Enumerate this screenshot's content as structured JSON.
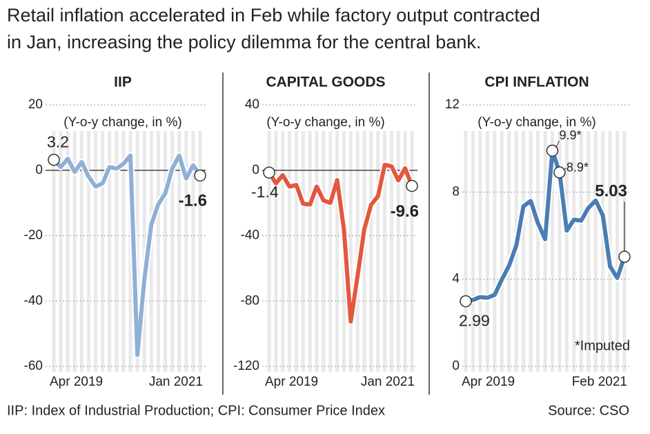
{
  "title": [
    "Retail inflation accelerated in Feb while factory output contracted",
    "in Jan, increasing the policy dilemma for the central bank."
  ],
  "chart_data": [
    {
      "type": "line",
      "title": "IIP",
      "subtitle": "(Y-o-y change, in %)",
      "categories": [
        "Apr 2019",
        null,
        null,
        null,
        null,
        null,
        null,
        null,
        null,
        null,
        null,
        null,
        null,
        null,
        null,
        null,
        null,
        null,
        null,
        null,
        null,
        "Jan 2021"
      ],
      "values": [
        3.2,
        1.0,
        3.5,
        -0.5,
        2.5,
        -2.0,
        -5.0,
        -4.0,
        1.0,
        0.5,
        2.0,
        4.5,
        -56.5,
        -33.4,
        -16.6,
        -10.4,
        -7.1,
        0.5,
        4.5,
        -2.5,
        1.5,
        -1.6
      ],
      "value_labels": [
        "3.2",
        null,
        null,
        null,
        null,
        null,
        null,
        null,
        null,
        null,
        null,
        null,
        null,
        null,
        null,
        null,
        null,
        null,
        null,
        null,
        null,
        "-1.6"
      ],
      "color": "#8fb0d6",
      "ylim": [
        -60,
        20
      ],
      "yticks": [
        20,
        0,
        -20,
        -40,
        -60
      ],
      "grid": true
    },
    {
      "type": "line",
      "title": "CAPITAL GOODS",
      "subtitle": "(Y-o-y change, in %)",
      "categories": [
        "Apr 2019",
        null,
        null,
        null,
        null,
        null,
        null,
        null,
        null,
        null,
        null,
        null,
        null,
        null,
        null,
        null,
        null,
        null,
        null,
        null,
        null,
        "Jan 2021"
      ],
      "values": [
        -1.4,
        -8.0,
        -3.0,
        -10.0,
        -9.0,
        -20.5,
        -21.0,
        -10.0,
        -18.5,
        -20.0,
        -6.0,
        -36.0,
        -92.6,
        -65.0,
        -36.0,
        -21.0,
        -16.0,
        3.3,
        2.4,
        -6.2,
        1.2,
        -9.6
      ],
      "value_labels": [
        "-1.4",
        null,
        null,
        null,
        null,
        null,
        null,
        null,
        null,
        null,
        null,
        null,
        null,
        null,
        null,
        null,
        null,
        null,
        null,
        null,
        null,
        "-9.6"
      ],
      "color": "#e2583e",
      "ylim": [
        -120,
        40
      ],
      "yticks": [
        40,
        0,
        -40,
        -80,
        -120
      ],
      "grid": true
    },
    {
      "type": "line",
      "title": "CPI INFLATION",
      "subtitle": "(Y-o-y change, in %)",
      "categories": [
        "Apr 2019",
        null,
        null,
        null,
        null,
        null,
        null,
        null,
        null,
        null,
        null,
        null,
        null,
        null,
        null,
        null,
        null,
        null,
        null,
        null,
        null,
        null,
        "Feb 2021"
      ],
      "values": [
        2.99,
        3.05,
        3.18,
        3.15,
        3.28,
        3.99,
        4.62,
        5.54,
        7.35,
        7.59,
        6.58,
        5.84,
        9.9,
        8.9,
        6.23,
        6.73,
        6.69,
        7.27,
        7.61,
        6.93,
        4.59,
        4.06,
        5.03
      ],
      "value_labels": [
        "2.99",
        null,
        null,
        null,
        null,
        null,
        null,
        null,
        null,
        null,
        null,
        null,
        "9.9*",
        "8.9*",
        null,
        null,
        null,
        null,
        null,
        null,
        null,
        null,
        "5.03"
      ],
      "color": "#4a7db3",
      "ylim": [
        0,
        12
      ],
      "yticks": [
        12,
        8,
        4,
        0
      ],
      "grid": true,
      "annotation": "*Imputed"
    }
  ],
  "footnote": "IIP: Index of Industrial Production; CPI: Consumer Price Index",
  "source": "Source: CSO"
}
